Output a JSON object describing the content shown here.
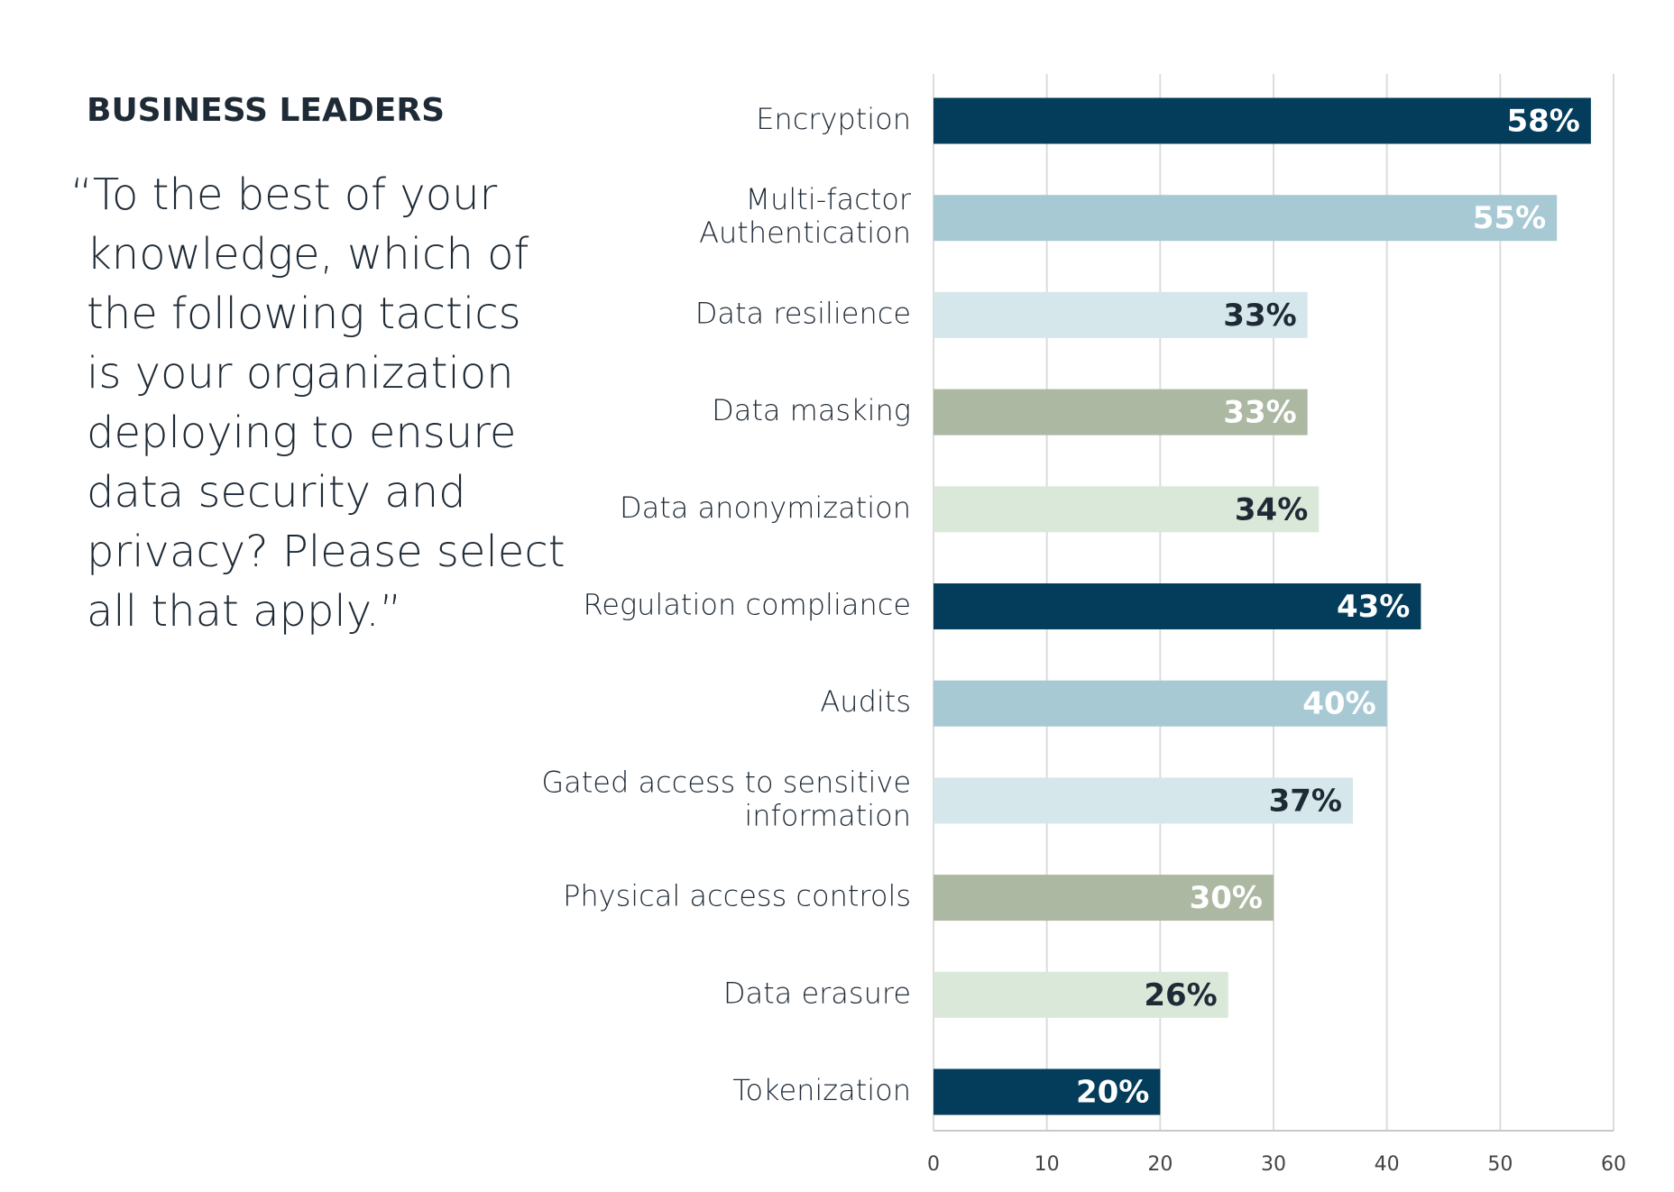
{
  "heading": "BUSINESS LEADERS",
  "question": [
    "“To the best of your",
    "knowledge, which of",
    "the following tactics",
    "is your organization",
    "deploying to ensure",
    "data security and",
    "privacy? Please select",
    "all that apply.”"
  ],
  "chart_data": {
    "type": "barh",
    "categories": [
      "Encryption",
      [
        "Multi-factor",
        "Authentication"
      ],
      "Data resilience",
      "Data masking",
      "Data anonymization",
      "Regulation compliance",
      "Audits",
      [
        "Gated access to sensitive",
        "information"
      ],
      "Physical access controls",
      "Data erasure",
      "Tokenization"
    ],
    "values": [
      58,
      55,
      33,
      33,
      34,
      43,
      40,
      37,
      30,
      26,
      20
    ],
    "value_labels": [
      "58%",
      "55%",
      "33%",
      "33%",
      "34%",
      "43%",
      "40%",
      "37%",
      "30%",
      "26%",
      "20%"
    ],
    "colors": [
      "#033d5b",
      "#a7c9d4",
      "#d5e7ea",
      "#acb8a2",
      "#dae8d9",
      "#033d5b",
      "#a7c9d4",
      "#d5e7ea",
      "#acb8a2",
      "#dae8d9",
      "#033d5b"
    ],
    "label_colors": [
      "#ffffff",
      "#ffffff",
      "#1e2a36",
      "#ffffff",
      "#1e2a36",
      "#ffffff",
      "#ffffff",
      "#1e2a36",
      "#ffffff",
      "#1e2a36",
      "#ffffff"
    ],
    "xlim": [
      0,
      60
    ],
    "xticks": [
      0,
      10,
      20,
      30,
      40,
      50,
      60
    ],
    "grid": true
  }
}
